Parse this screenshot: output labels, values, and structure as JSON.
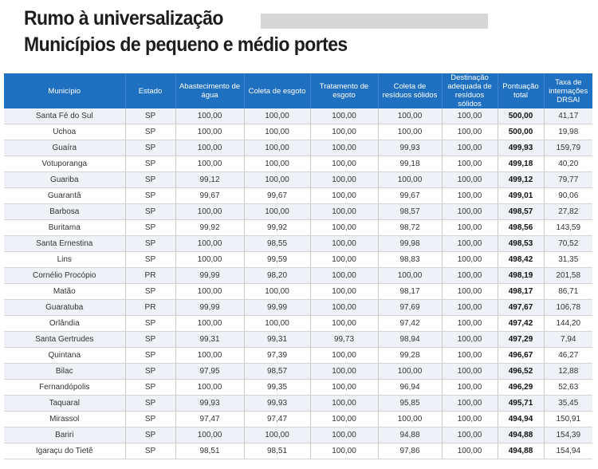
{
  "header": {
    "title_line1": "Rumo à universalização",
    "title_line2": "Municípios de pequeno e médio portes"
  },
  "table": {
    "columns": [
      "Município",
      "Estado",
      "Abastecimento de água",
      "Coleta de esgoto",
      "Tratamento de esgoto",
      "Coleta de resíduos sólidos",
      "Destinação adequada de resíduos sólidos",
      "Pontuação total",
      "Taxa de internações DRSAI"
    ],
    "rows": [
      [
        "Santa Fé do Sul",
        "SP",
        "100,00",
        "100,00",
        "100,00",
        "100,00",
        "100,00",
        "500,00",
        "41,17"
      ],
      [
        "Uchoa",
        "SP",
        "100,00",
        "100,00",
        "100,00",
        "100,00",
        "100,00",
        "500,00",
        "19,98"
      ],
      [
        "Guaíra",
        "SP",
        "100,00",
        "100,00",
        "100,00",
        "99,93",
        "100,00",
        "499,93",
        "159,79"
      ],
      [
        "Votuporanga",
        "SP",
        "100,00",
        "100,00",
        "100,00",
        "99,18",
        "100,00",
        "499,18",
        "40,20"
      ],
      [
        "Guariba",
        "SP",
        "99,12",
        "100,00",
        "100,00",
        "100,00",
        "100,00",
        "499,12",
        "79,77"
      ],
      [
        "Guarantã",
        "SP",
        "99,67",
        "99,67",
        "100,00",
        "99,67",
        "100,00",
        "499,01",
        "90,06"
      ],
      [
        "Barbosa",
        "SP",
        "100,00",
        "100,00",
        "100,00",
        "98,57",
        "100,00",
        "498,57",
        "27,82"
      ],
      [
        "Buritama",
        "SP",
        "99,92",
        "99,92",
        "100,00",
        "98,72",
        "100,00",
        "498,56",
        "143,59"
      ],
      [
        "Santa Ernestina",
        "SP",
        "100,00",
        "98,55",
        "100,00",
        "99,98",
        "100,00",
        "498,53",
        "70,52"
      ],
      [
        "Lins",
        "SP",
        "100,00",
        "99,59",
        "100,00",
        "98,83",
        "100,00",
        "498,42",
        "31,35"
      ],
      [
        "Cornélio Procópio",
        "PR",
        "99,99",
        "98,20",
        "100,00",
        "100,00",
        "100,00",
        "498,19",
        "201,58"
      ],
      [
        "Matão",
        "SP",
        "100,00",
        "100,00",
        "100,00",
        "98,17",
        "100,00",
        "498,17",
        "86,71"
      ],
      [
        "Guaratuba",
        "PR",
        "99,99",
        "99,99",
        "100,00",
        "97,69",
        "100,00",
        "497,67",
        "106,78"
      ],
      [
        "Orlândia",
        "SP",
        "100,00",
        "100,00",
        "100,00",
        "97,42",
        "100,00",
        "497,42",
        "144,20"
      ],
      [
        "Santa Gertrudes",
        "SP",
        "99,31",
        "99,31",
        "99,73",
        "98,94",
        "100,00",
        "497,29",
        "7,94"
      ],
      [
        "Quintana",
        "SP",
        "100,00",
        "97,39",
        "100,00",
        "99,28",
        "100,00",
        "496,67",
        "46,27"
      ],
      [
        "Bilac",
        "SP",
        "97,95",
        "98,57",
        "100,00",
        "100,00",
        "100,00",
        "496,52",
        "12,88"
      ],
      [
        "Fernandópolis",
        "SP",
        "100,00",
        "99,35",
        "100,00",
        "96,94",
        "100,00",
        "496,29",
        "52,63"
      ],
      [
        "Taquaral",
        "SP",
        "99,93",
        "99,93",
        "100,00",
        "95,85",
        "100,00",
        "495,71",
        "35,45"
      ],
      [
        "Mirassol",
        "SP",
        "97,47",
        "97,47",
        "100,00",
        "100,00",
        "100,00",
        "494,94",
        "150,91"
      ],
      [
        "Bariri",
        "SP",
        "100,00",
        "100,00",
        "100,00",
        "94,88",
        "100,00",
        "494,88",
        "154,39"
      ],
      [
        "Igaraçu do Tietê",
        "SP",
        "98,51",
        "98,51",
        "100,00",
        "97,86",
        "100,00",
        "494,88",
        "154,94"
      ]
    ]
  },
  "colors": {
    "header_bg": "#1f70c1",
    "header_text": "#ffffff",
    "row_stripe": "#eef2f7",
    "placeholder_bar": "#d6d6d6"
  }
}
